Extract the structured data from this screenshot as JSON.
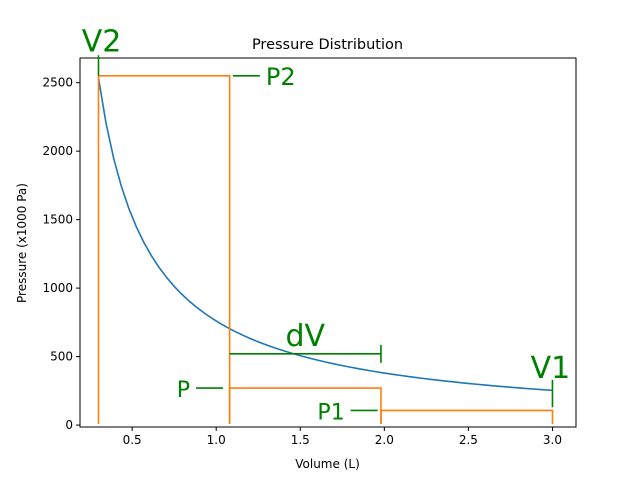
{
  "chart_data": {
    "type": "line",
    "title": "Pressure Distribution",
    "xlabel": "Volume (L)",
    "ylabel": "Pressure (x1000 Pa)",
    "xlim": [
      0.19,
      3.14
    ],
    "ylim": [
      -14,
      2680
    ],
    "x_ticks": [
      0.5,
      1.0,
      1.5,
      2.0,
      2.5,
      3.0
    ],
    "x_tick_labels": [
      "0.5",
      "1.0",
      "1.5",
      "2.0",
      "2.5",
      "3.0"
    ],
    "y_ticks": [
      0,
      500,
      1000,
      1500,
      2000,
      2500
    ],
    "y_tick_labels": [
      "0",
      "500",
      "1000",
      "1500",
      "2000",
      "2500"
    ],
    "grid": false,
    "series": [
      {
        "color": "#1f77b4",
        "curve": "pressure = 760 / volume",
        "x_range": [
          0.3,
          3.0
        ]
      }
    ],
    "rectangles": [
      {
        "x0": 0.3,
        "x1": 1.08,
        "y_top": 2550,
        "color": "#ff7f0e"
      },
      {
        "x0": 1.08,
        "x1": 1.98,
        "y_top": 270,
        "color": "#ff7f0e"
      },
      {
        "x0": 1.98,
        "x1": 3.0,
        "y_top": 107,
        "color": "#ff7f0e"
      }
    ],
    "annotations": [
      {
        "text": "V2",
        "color": "#008000",
        "marker": "vertical",
        "at_x": 0.3,
        "y_from": 2550,
        "y_to": 2700
      },
      {
        "text": "P2",
        "color": "#008000",
        "marker": "horizontal",
        "y": 2550,
        "x_from": 1.1,
        "x_to": 1.26
      },
      {
        "text": "dV",
        "color": "#008000",
        "marker": "bracket",
        "y": 520,
        "x_from": 1.08,
        "x_to": 1.98
      },
      {
        "text": "P",
        "color": "#008000",
        "marker": "horizontal",
        "y": 270,
        "x_from": 0.88,
        "x_to": 1.04
      },
      {
        "text": "P1",
        "color": "#008000",
        "marker": "horizontal",
        "y": 107,
        "x_from": 1.8,
        "x_to": 1.96
      },
      {
        "text": "V1",
        "color": "#008000",
        "marker": "vertical",
        "at_x": 3.0,
        "y_from": 130,
        "y_to": 330
      }
    ]
  }
}
